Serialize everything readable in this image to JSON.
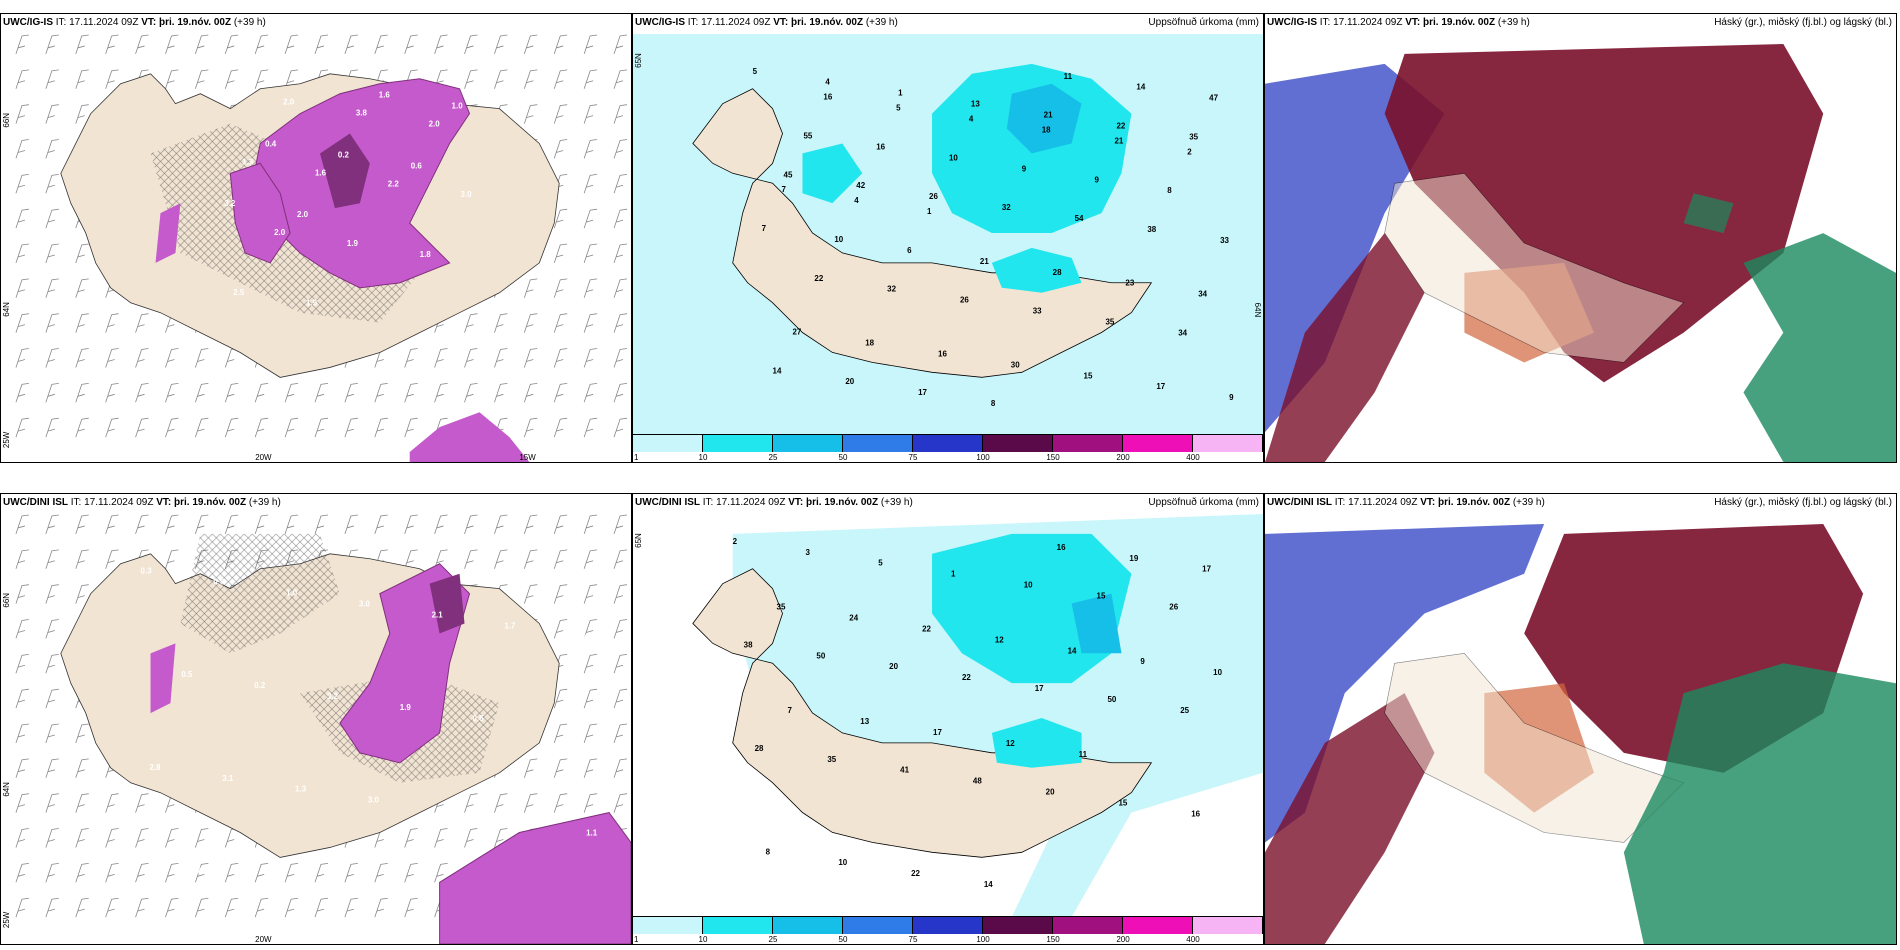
{
  "panels": [
    {
      "title_prefix": "UWC/IG-IS",
      "it": "IT: 17.11.2024 09Z",
      "vt_label": "VT:",
      "vt": "þri. 19.nóv. 00Z",
      "lead": "(+39 h)",
      "right": ""
    },
    {
      "title_prefix": "UWC/IG-IS",
      "it": "IT: 17.11.2024 09Z",
      "vt_label": "VT:",
      "vt": "þri. 19.nóv. 00Z",
      "lead": "(+39 h)",
      "right": "Uppsöfnuð úrkoma (mm)"
    },
    {
      "title_prefix": "UWC/IG-IS",
      "it": "IT: 17.11.2024 09Z",
      "vt_label": "VT:",
      "vt": "þri. 19.nóv. 00Z",
      "lead": "(+39 h)",
      "right": "Háský (gr.), miðský (fj.bl.) og lágský (bl.)"
    },
    {
      "title_prefix": "UWC/DINI ISL",
      "it": "IT: 17.11.2024 09Z",
      "vt_label": "VT:",
      "vt": "þri. 19.nóv. 00Z",
      "lead": "(+39 h)",
      "right": ""
    },
    {
      "title_prefix": "UWC/DINI ISL",
      "it": "IT: 17.11.2024 09Z",
      "vt_label": "VT:",
      "vt": "þri. 19.nóv. 00Z",
      "lead": "(+39 h)",
      "right": "Uppsöfnuð úrkoma (mm)"
    },
    {
      "title_prefix": "UWC/DINI ISL",
      "it": "IT: 17.11.2024 09Z",
      "vt_label": "VT:",
      "vt": "þri. 19.nóv. 00Z",
      "lead": "(+39 h)",
      "right": "Háský (gr.), miðský (fj.bl.) og lágský (bl.)"
    }
  ],
  "axis_labels": {
    "lat66": "66N",
    "lat64": "64N",
    "lon25": "25W",
    "lon20": "20W",
    "lon15": "15W",
    "lat65": "65N"
  },
  "colorbar": {
    "ticks": [
      "1",
      "10",
      "25",
      "50",
      "75",
      "100",
      "150",
      "200",
      "400"
    ],
    "colors": [
      "#c8f6fa",
      "#22e6ee",
      "#16bfe8",
      "#2f7be8",
      "#2636c8",
      "#5a0a48",
      "#a0107e",
      "#ee10b6",
      "#f6b4f4"
    ]
  },
  "precip_values_top": [
    "5",
    "4",
    "1",
    "13",
    "21",
    "22",
    "35",
    "45",
    "42",
    "26",
    "32",
    "54",
    "38",
    "33",
    "22",
    "32",
    "26",
    "33",
    "35",
    "34",
    "14",
    "20",
    "17",
    "8",
    "11",
    "14",
    "47",
    "55",
    "16",
    "10",
    "9",
    "9",
    "8",
    "7",
    "10",
    "6",
    "21",
    "28",
    "23",
    "34",
    "27",
    "18",
    "16",
    "30",
    "15",
    "17",
    "9",
    "16",
    "5",
    "4",
    "18",
    "21",
    "2",
    "7",
    "4",
    "1"
  ],
  "precip_values_bottom": [
    "2",
    "3",
    "5",
    "1",
    "10",
    "15",
    "26",
    "38",
    "50",
    "20",
    "22",
    "17",
    "50",
    "25",
    "28",
    "35",
    "41",
    "48",
    "20",
    "15",
    "16",
    "8",
    "10",
    "22",
    "14",
    "16",
    "19",
    "17",
    "35",
    "24",
    "22",
    "12",
    "14",
    "9",
    "10",
    "7",
    "13",
    "17",
    "12",
    "11"
  ],
  "dini_values": [
    "0.3",
    "0.8",
    "1.0",
    "3.0",
    "2.1",
    "1.7",
    "1.4",
    "0.5",
    "0.2",
    "3.2",
    "1.9",
    "0.6",
    "2.0",
    "2.8",
    "3.1",
    "1.3",
    "3.0",
    "5.2",
    "2.6",
    "1.1",
    "1.7",
    "4.2"
  ],
  "igis_values": [
    "0.9",
    "2.0",
    "3.8",
    "2.0",
    "1.3",
    "1.6",
    "2.2",
    "3.0",
    "2.0",
    "1.9",
    "1.8",
    "2.5",
    "1.9",
    "1.6",
    "1.0",
    "0.4",
    "0.2",
    "0.6",
    "3.2",
    "2.0"
  ],
  "colors": {
    "land": "#f2e4d3",
    "sea": "#ffffff",
    "precip_sea": "#c8f6fa",
    "magenta": "#c45acb",
    "dark_magenta": "#80307c",
    "cloud_high": "#7a0f2a",
    "cloud_mid": "#2d3fc3",
    "cloud_low": "#1a8a5e"
  }
}
